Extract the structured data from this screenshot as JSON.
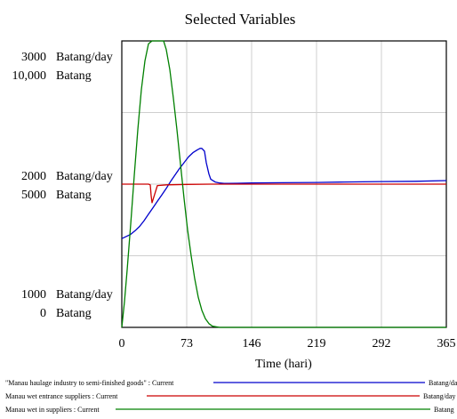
{
  "chart_data": {
    "type": "line",
    "title": "Selected Variables",
    "xlabel": "Time (hari)",
    "xlim": [
      0,
      365
    ],
    "x_ticks": [
      "0",
      "73",
      "146",
      "219",
      "292",
      "365"
    ],
    "y_axis_labels": {
      "top": [
        {
          "value": "3000",
          "unit": "Batang/day"
        },
        {
          "value": "10,000",
          "unit": "Batang"
        }
      ],
      "middle": [
        {
          "value": "2000",
          "unit": "Batang/day"
        },
        {
          "value": "5000",
          "unit": "Batang"
        }
      ],
      "bottom": [
        {
          "value": "1000",
          "unit": "Batang/day"
        },
        {
          "value": "0",
          "unit": "Batang"
        }
      ]
    },
    "grid": true,
    "legend_position": "bottom",
    "series": [
      {
        "name": "\"Manau haulage industry to semi-finished goods\" : Current",
        "unit": "Batang/day",
        "color": "#0000cc",
        "ylim": [
          1000,
          3000
        ],
        "x": [
          0,
          5,
          10,
          15,
          20,
          25,
          30,
          35,
          40,
          45,
          50,
          55,
          60,
          65,
          70,
          75,
          80,
          85,
          88,
          90,
          93,
          95,
          98,
          100,
          105,
          110,
          115,
          120,
          130,
          146,
          180,
          219,
          250,
          292,
          330,
          365
        ],
        "y": [
          1620,
          1635,
          1650,
          1675,
          1705,
          1745,
          1790,
          1835,
          1880,
          1925,
          1970,
          2020,
          2065,
          2110,
          2150,
          2190,
          2220,
          2240,
          2250,
          2250,
          2230,
          2150,
          2070,
          2035,
          2015,
          2008,
          2005,
          2005,
          2006,
          2008,
          2010,
          2012,
          2015,
          2018,
          2020,
          2025
        ]
      },
      {
        "name": "Manau wet entrance suppliers : Current",
        "unit": "Batang/day",
        "color": "#cc0000",
        "ylim": [
          1000,
          3000
        ],
        "x": [
          0,
          10,
          20,
          30,
          32,
          33,
          34,
          37,
          40,
          50,
          73,
          100,
          146,
          219,
          292,
          365
        ],
        "y": [
          2000,
          2000,
          2000,
          2000,
          1995,
          1920,
          1870,
          1930,
          1990,
          1995,
          1998,
          2000,
          2000,
          2000,
          2000,
          2000
        ]
      },
      {
        "name": "Manau wet in suppliers : Current",
        "unit": "Batang",
        "color": "#008000",
        "ylim": [
          0,
          10000
        ],
        "x": [
          0,
          3,
          6,
          10,
          14,
          18,
          22,
          26,
          30,
          34,
          40,
          47,
          50,
          54,
          58,
          62,
          66,
          70,
          74,
          78,
          82,
          86,
          90,
          94,
          98,
          102,
          110,
          120,
          146,
          219,
          292,
          365
        ],
        "y": [
          0,
          900,
          2000,
          3600,
          5300,
          6900,
          8300,
          9300,
          9900,
          10000,
          10000,
          10000,
          9700,
          9000,
          8000,
          6900,
          5700,
          4500,
          3400,
          2500,
          1700,
          1050,
          600,
          300,
          130,
          40,
          0,
          0,
          0,
          0,
          0,
          0
        ]
      }
    ],
    "legend_units_shown": [
      "Batang/day",
      "Batang/day",
      "Batang"
    ]
  }
}
